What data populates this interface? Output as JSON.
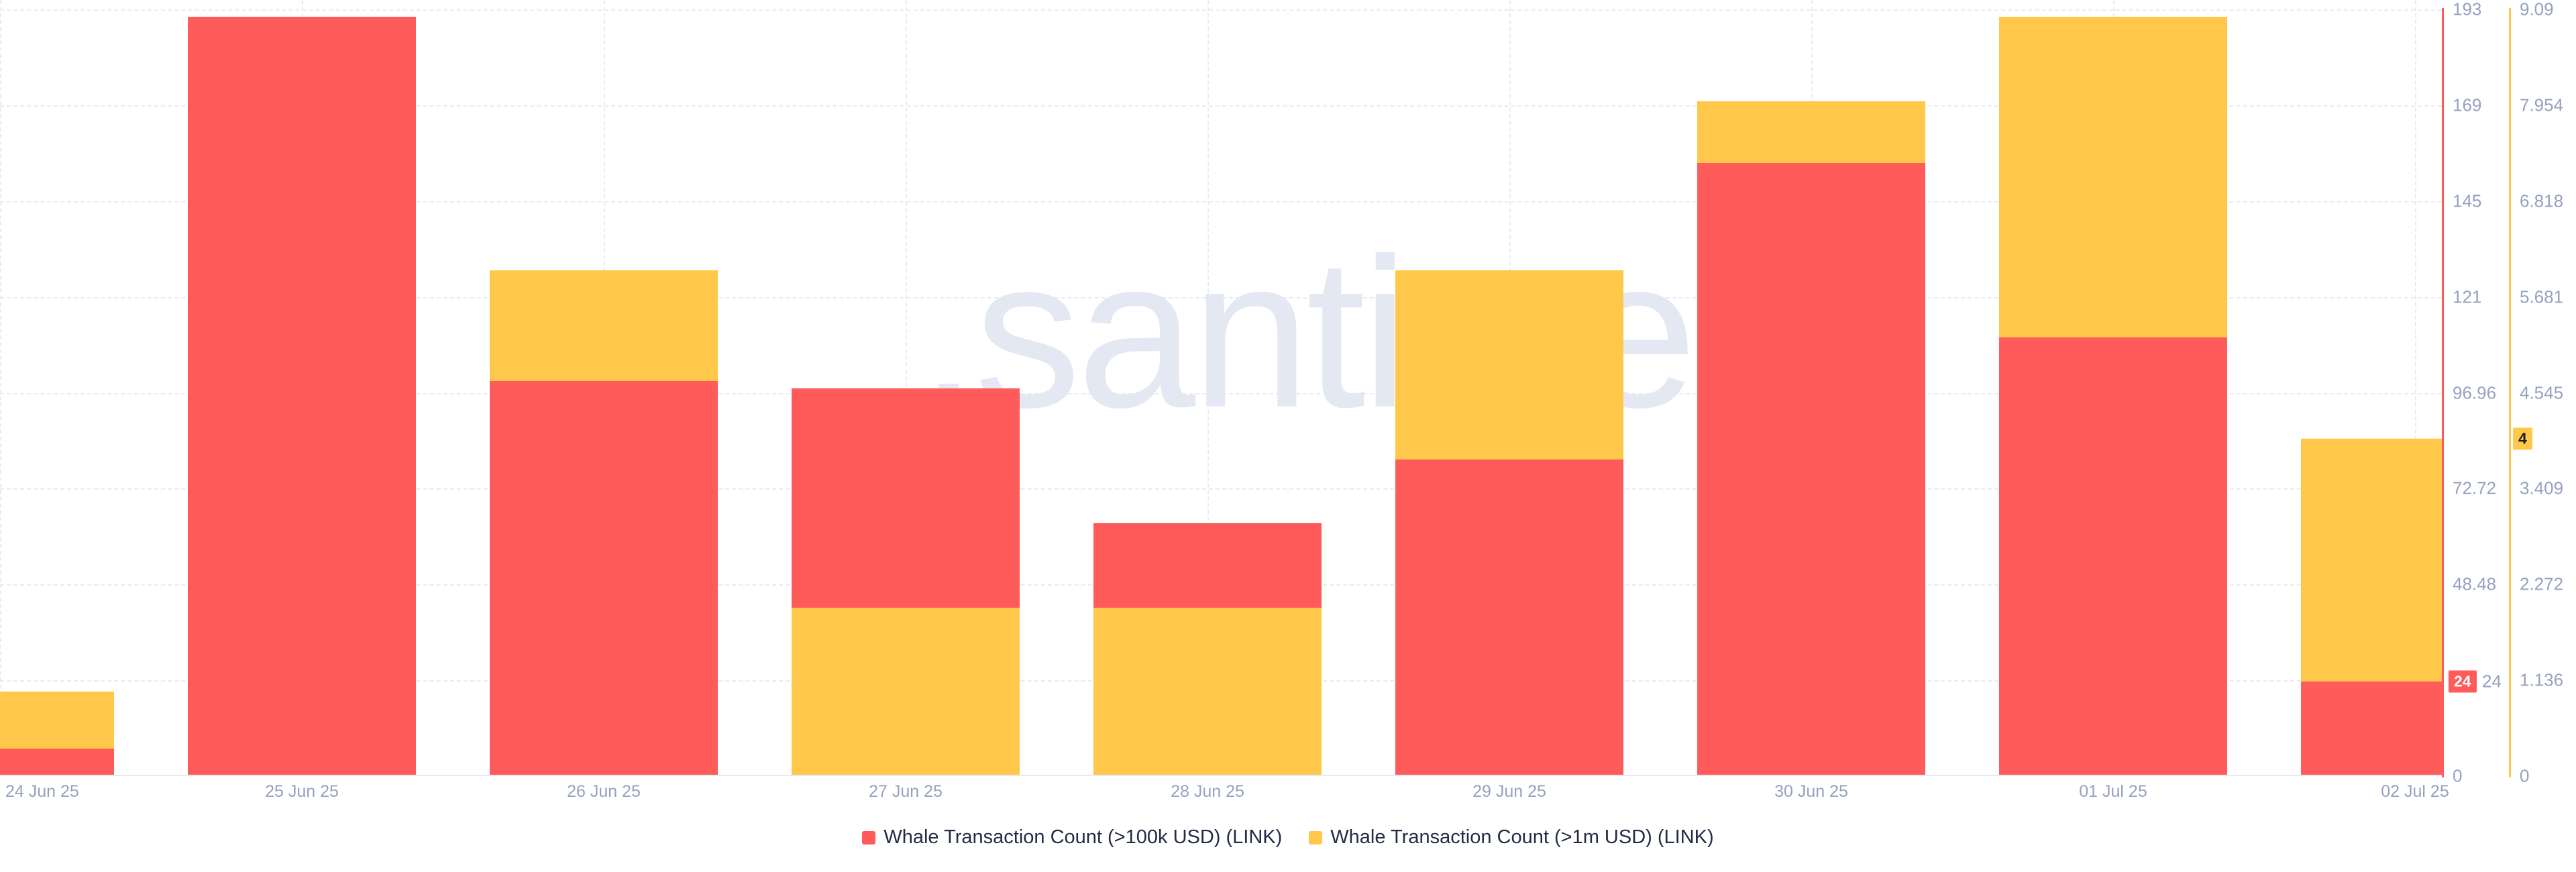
{
  "chart_data": {
    "type": "bar",
    "title": "",
    "watermark": ".santiment",
    "grid": true,
    "legend_position": "bottom-center",
    "categories": [
      "24 Jun 25",
      "25 Jun 25",
      "26 Jun 25",
      "27 Jun 25",
      "28 Jun 25",
      "29 Jun 25",
      "30 Jun 25",
      "01 Jul 25",
      "02 Jul 25"
    ],
    "series": [
      {
        "name": "Whale Transaction Count (>100k USD) (LINK)",
        "color": "#ff5b5b",
        "axis": "red",
        "values": [
          7,
          192,
          100,
          98,
          64,
          80,
          155,
          111,
          24
        ]
      },
      {
        "name": "Whale Transaction Count (>1m USD) (LINK)",
        "color": "#ffc84a",
        "axis": "yellow",
        "values": [
          1,
          0,
          6,
          2,
          2,
          6,
          8,
          9,
          4
        ]
      }
    ],
    "red_axis": {
      "max": 193.92,
      "tick_labels": [
        "193",
        "169",
        "145",
        "121",
        "96.96",
        "72.72",
        "48.48",
        "24.24",
        "0"
      ],
      "badge": {
        "text": "24",
        "remainder_visible": "24",
        "value": 24,
        "bg": "#ff5b5b",
        "fg": "#ffffff"
      }
    },
    "yellow_axis": {
      "max": 9.09,
      "tick_labels": [
        "9.09",
        "7.954",
        "6.818",
        "5.681",
        "4.545",
        "3.409",
        "2.272",
        "1.136",
        "0"
      ],
      "badge": {
        "text": "4",
        "value": 4,
        "bg": "#ffc84a",
        "fg": "#1c1c1c"
      }
    }
  },
  "colors": {
    "red": "#ff5b5b",
    "yellow": "#ffc84a",
    "grid": "#e8ebf4",
    "tick_text": "#97a0be",
    "legend_text": "#242b45",
    "watermark": "#e4e8f3",
    "background": "#ffffff"
  }
}
